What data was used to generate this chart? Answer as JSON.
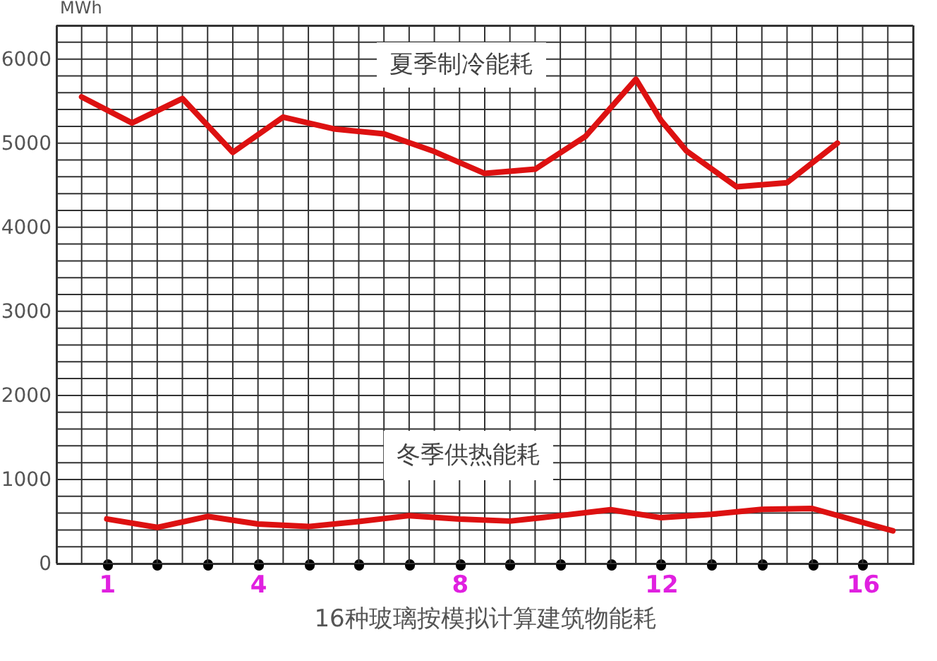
{
  "chart_data": {
    "type": "line",
    "xlabel": "16种玻璃按模拟计算建筑物能耗",
    "ylabel": "MWh",
    "xlim": [
      0,
      17
    ],
    "xticks": [
      {
        "value": 1,
        "label": "1"
      },
      {
        "value": 2,
        "label": null
      },
      {
        "value": 3,
        "label": null
      },
      {
        "value": 4,
        "label": "4"
      },
      {
        "value": 5,
        "label": null
      },
      {
        "value": 6,
        "label": null
      },
      {
        "value": 7,
        "label": null
      },
      {
        "value": 8,
        "label": "8"
      },
      {
        "value": 9,
        "label": null
      },
      {
        "value": 10,
        "label": null
      },
      {
        "value": 11,
        "label": null
      },
      {
        "value": 12,
        "label": "12"
      },
      {
        "value": 13,
        "label": null
      },
      {
        "value": 14,
        "label": null
      },
      {
        "value": 15,
        "label": null
      },
      {
        "value": 16,
        "label": "16"
      }
    ],
    "ylim": [
      0,
      6400
    ],
    "yticks": [
      0,
      1000,
      2000,
      3000,
      4000,
      5000,
      6000
    ],
    "grid": true,
    "marker": "none",
    "line_style": "solid",
    "series": [
      {
        "name": "夏季制冷能耗",
        "color": "#dd1111",
        "x": [
          0.5,
          1.5,
          2.5,
          3.5,
          4.5,
          5.5,
          6.5,
          7.5,
          8.5,
          9.5,
          10.5,
          11.5,
          12.0,
          12.5,
          13.5,
          14.5,
          15.5
        ],
        "values": [
          5550,
          5240,
          5530,
          4890,
          5310,
          5170,
          5110,
          4900,
          4640,
          4690,
          5080,
          5760,
          5270,
          4910,
          4480,
          4530,
          5000
        ]
      },
      {
        "name": "冬季供热能耗",
        "color": "#dd1111",
        "x": [
          1,
          2,
          3,
          4,
          5,
          6,
          7,
          8,
          9,
          10,
          11,
          12,
          13,
          14,
          15,
          16.6
        ],
        "values": [
          530,
          430,
          560,
          470,
          440,
          500,
          570,
          530,
          505,
          570,
          640,
          545,
          585,
          645,
          655,
          390
        ]
      }
    ]
  }
}
